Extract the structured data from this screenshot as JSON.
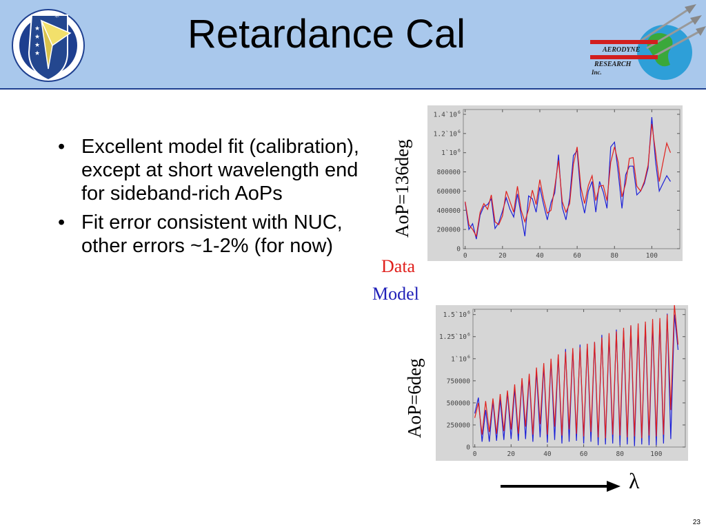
{
  "title": "Retardance Cal",
  "logos": {
    "left_text": "AIR FORCE RESEARCH LABORATORY",
    "right_line1": "AERODYNE",
    "right_line2": "RESEARCH",
    "right_line3": "Inc."
  },
  "bullets": [
    "Excellent model fit (calibration), except at short wavelength end for sideband-rich AoPs",
    "Fit error consistent with NUC, other errors ~1-2% (for now)"
  ],
  "legend": {
    "data": "Data",
    "model": "Model"
  },
  "colors": {
    "data": "#e0201c",
    "model": "#1c20d8",
    "header_bg": "#a9c8ec",
    "chart_bg": "#d6d6d6"
  },
  "wavelength_symbol": "λ",
  "slide_number": "23",
  "chart_data": [
    {
      "type": "line",
      "ylabel": "AoP=136deg",
      "xlim": [
        -1,
        115
      ],
      "ylim": [
        0,
        1450000
      ],
      "xticks": [
        "0",
        "20",
        "40",
        "60",
        "80",
        "100"
      ],
      "xtick_values": [
        0,
        20,
        40,
        60,
        80,
        100
      ],
      "yticks": [
        {
          "value": 0,
          "base": "0",
          "sup": ""
        },
        {
          "value": 200000,
          "base": "200000",
          "sup": ""
        },
        {
          "value": 400000,
          "base": "400000",
          "sup": ""
        },
        {
          "value": 600000,
          "base": "600000",
          "sup": ""
        },
        {
          "value": 800000,
          "base": "800000",
          "sup": ""
        },
        {
          "value": 1000000,
          "base": "1`10",
          "sup": "6"
        },
        {
          "value": 1200000,
          "base": "1.2`10",
          "sup": "6"
        },
        {
          "value": 1400000,
          "base": "1.4`10",
          "sup": "6"
        }
      ],
      "series": [
        {
          "name": "Data",
          "x": [
            0,
            2,
            4,
            6,
            8,
            10,
            12,
            14,
            16,
            18,
            20,
            22,
            24,
            26,
            28,
            30,
            32,
            34,
            36,
            38,
            40,
            42,
            44,
            46,
            48,
            50,
            52,
            54,
            56,
            58,
            60,
            62,
            64,
            66,
            68,
            70,
            72,
            74,
            76,
            78,
            80,
            82,
            84,
            86,
            88,
            90,
            92,
            94,
            96,
            98,
            100,
            102,
            104,
            106,
            108,
            110
          ],
          "y": [
            490000,
            250000,
            200000,
            130000,
            380000,
            470000,
            410000,
            560000,
            280000,
            250000,
            340000,
            600000,
            490000,
            380000,
            650000,
            400000,
            280000,
            410000,
            610000,
            460000,
            720000,
            520000,
            370000,
            400000,
            640000,
            920000,
            490000,
            380000,
            470000,
            880000,
            1060000,
            640000,
            470000,
            660000,
            760000,
            500000,
            650000,
            660000,
            500000,
            900000,
            1060000,
            900000,
            540000,
            680000,
            940000,
            950000,
            650000,
            600000,
            700000,
            870000,
            1300000,
            1010000,
            700000,
            900000,
            1100000,
            1000000
          ]
        },
        {
          "name": "Model",
          "x": [
            0,
            2,
            4,
            6,
            8,
            10,
            12,
            14,
            16,
            18,
            20,
            22,
            24,
            26,
            28,
            30,
            32,
            34,
            36,
            38,
            40,
            42,
            44,
            46,
            48,
            50,
            52,
            54,
            56,
            58,
            60,
            62,
            64,
            66,
            68,
            70,
            72,
            74,
            76,
            78,
            80,
            82,
            84,
            86,
            88,
            90,
            92,
            94,
            96,
            98,
            100,
            102,
            104,
            106,
            108,
            110
          ],
          "y": [
            480000,
            200000,
            260000,
            100000,
            350000,
            440000,
            460000,
            520000,
            210000,
            270000,
            390000,
            530000,
            410000,
            330000,
            570000,
            350000,
            130000,
            550000,
            520000,
            380000,
            640000,
            460000,
            300000,
            480000,
            580000,
            980000,
            430000,
            300000,
            530000,
            970000,
            1020000,
            550000,
            370000,
            600000,
            700000,
            380000,
            700000,
            590000,
            420000,
            1060000,
            1110000,
            790000,
            420000,
            770000,
            860000,
            860000,
            560000,
            600000,
            680000,
            840000,
            1370000,
            910000,
            600000,
            680000,
            760000,
            700000
          ]
        }
      ]
    },
    {
      "type": "line",
      "ylabel": "AoP=6deg",
      "xlim": [
        -1,
        116
      ],
      "ylim": [
        0,
        1560000
      ],
      "xticks": [
        "0",
        "20",
        "40",
        "60",
        "80",
        "100"
      ],
      "xtick_values": [
        0,
        20,
        40,
        60,
        80,
        100
      ],
      "yticks": [
        {
          "value": 0,
          "base": "0",
          "sup": ""
        },
        {
          "value": 250000,
          "base": "250000",
          "sup": ""
        },
        {
          "value": 500000,
          "base": "500000",
          "sup": ""
        },
        {
          "value": 750000,
          "base": "750000",
          "sup": ""
        },
        {
          "value": 1000000,
          "base": "1`10",
          "sup": "6"
        },
        {
          "value": 1250000,
          "base": "1.25`10",
          "sup": "6"
        },
        {
          "value": 1500000,
          "base": "1.5`10",
          "sup": "6"
        }
      ],
      "series": [
        {
          "name": "Data",
          "x": [
            0,
            2,
            4,
            6,
            8,
            10,
            12,
            14,
            16,
            18,
            20,
            22,
            24,
            26,
            28,
            30,
            32,
            34,
            36,
            38,
            40,
            42,
            44,
            46,
            48,
            50,
            52,
            54,
            56,
            58,
            60,
            62,
            64,
            66,
            68,
            70,
            72,
            74,
            76,
            78,
            80,
            82,
            84,
            86,
            88,
            90,
            92,
            94,
            96,
            98,
            100,
            102,
            104,
            106,
            108,
            110,
            112
          ],
          "y": [
            330000,
            500000,
            140000,
            520000,
            170000,
            550000,
            150000,
            600000,
            180000,
            640000,
            200000,
            710000,
            150000,
            780000,
            230000,
            830000,
            140000,
            900000,
            260000,
            950000,
            140000,
            1000000,
            230000,
            1050000,
            130000,
            1080000,
            200000,
            1120000,
            150000,
            1130000,
            120000,
            1170000,
            170000,
            1190000,
            110000,
            1240000,
            100000,
            1290000,
            140000,
            1310000,
            130000,
            1350000,
            110000,
            1380000,
            120000,
            1400000,
            100000,
            1420000,
            130000,
            1450000,
            120000,
            1460000,
            140000,
            1500000,
            420000,
            1610000,
            1160000
          ]
        },
        {
          "name": "Model",
          "x": [
            0,
            2,
            4,
            6,
            8,
            10,
            12,
            14,
            16,
            18,
            20,
            22,
            24,
            26,
            28,
            30,
            32,
            34,
            36,
            38,
            40,
            42,
            44,
            46,
            48,
            50,
            52,
            54,
            56,
            58,
            60,
            62,
            64,
            66,
            68,
            70,
            72,
            74,
            76,
            78,
            80,
            82,
            84,
            86,
            88,
            90,
            92,
            94,
            96,
            98,
            100,
            102,
            104,
            106,
            108,
            110,
            112
          ],
          "y": [
            380000,
            560000,
            60000,
            420000,
            60000,
            520000,
            70000,
            540000,
            80000,
            620000,
            90000,
            660000,
            70000,
            760000,
            90000,
            810000,
            60000,
            860000,
            110000,
            920000,
            50000,
            980000,
            80000,
            1040000,
            40000,
            1110000,
            60000,
            1110000,
            70000,
            1160000,
            40000,
            1160000,
            60000,
            1190000,
            20000,
            1270000,
            30000,
            1260000,
            40000,
            1330000,
            20000,
            1320000,
            30000,
            1370000,
            10000,
            1350000,
            30000,
            1390000,
            20000,
            1400000,
            20000,
            1420000,
            40000,
            1510000,
            90000,
            1500000,
            1100000
          ]
        }
      ]
    }
  ]
}
